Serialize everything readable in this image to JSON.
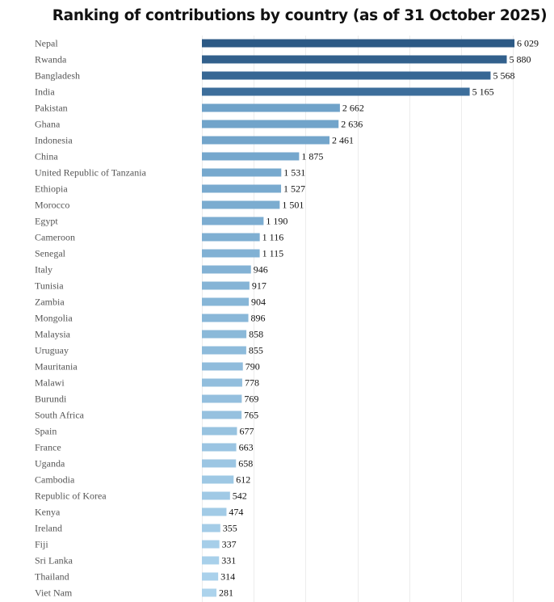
{
  "chart_data": {
    "type": "bar",
    "orientation": "horizontal",
    "title": "Ranking of contributions by country (as of 31 October 2025)",
    "xlabel": "",
    "ylabel": "",
    "xlim": [
      0,
      6000
    ],
    "grid": true,
    "gridline_step": 1000,
    "value_format": "space-thousands",
    "categories": [
      "Nepal",
      "Rwanda",
      "Bangladesh",
      "India",
      "Pakistan",
      "Ghana",
      "Indonesia",
      "China",
      "United Republic of Tanzania",
      "Ethiopia",
      "Morocco",
      "Egypt",
      "Cameroon",
      "Senegal",
      "Italy",
      "Tunisia",
      "Zambia",
      "Mongolia",
      "Malaysia",
      "Uruguay",
      "Mauritania",
      "Malawi",
      "Burundi",
      "South Africa",
      "Spain",
      "France",
      "Uganda",
      "Cambodia",
      "Republic of Korea",
      "Kenya",
      "Ireland",
      "Fiji",
      "Sri Lanka",
      "Thailand",
      "Viet Nam"
    ],
    "values": [
      6029,
      5880,
      5568,
      5165,
      2662,
      2636,
      2461,
      1875,
      1531,
      1527,
      1501,
      1190,
      1116,
      1115,
      946,
      917,
      904,
      896,
      858,
      855,
      790,
      778,
      769,
      765,
      677,
      663,
      658,
      612,
      542,
      474,
      355,
      337,
      331,
      314,
      281
    ],
    "value_labels": [
      "6 029",
      "5 880",
      "5 568",
      "5 165",
      "2 662",
      "2 636",
      "2 461",
      "1 875",
      "1 531",
      "1 527",
      "1 501",
      "1 190",
      "1 116",
      "1 115",
      "946",
      "917",
      "904",
      "896",
      "858",
      "855",
      "790",
      "778",
      "769",
      "765",
      "677",
      "663",
      "658",
      "612",
      "542",
      "474",
      "355",
      "337",
      "331",
      "314",
      "281"
    ],
    "color_scale": {
      "dark": "#2c5985",
      "dark_end": "#3d6e9b",
      "mid": "#6fa2c9",
      "light": "#acd3ec"
    },
    "legend": "none"
  }
}
